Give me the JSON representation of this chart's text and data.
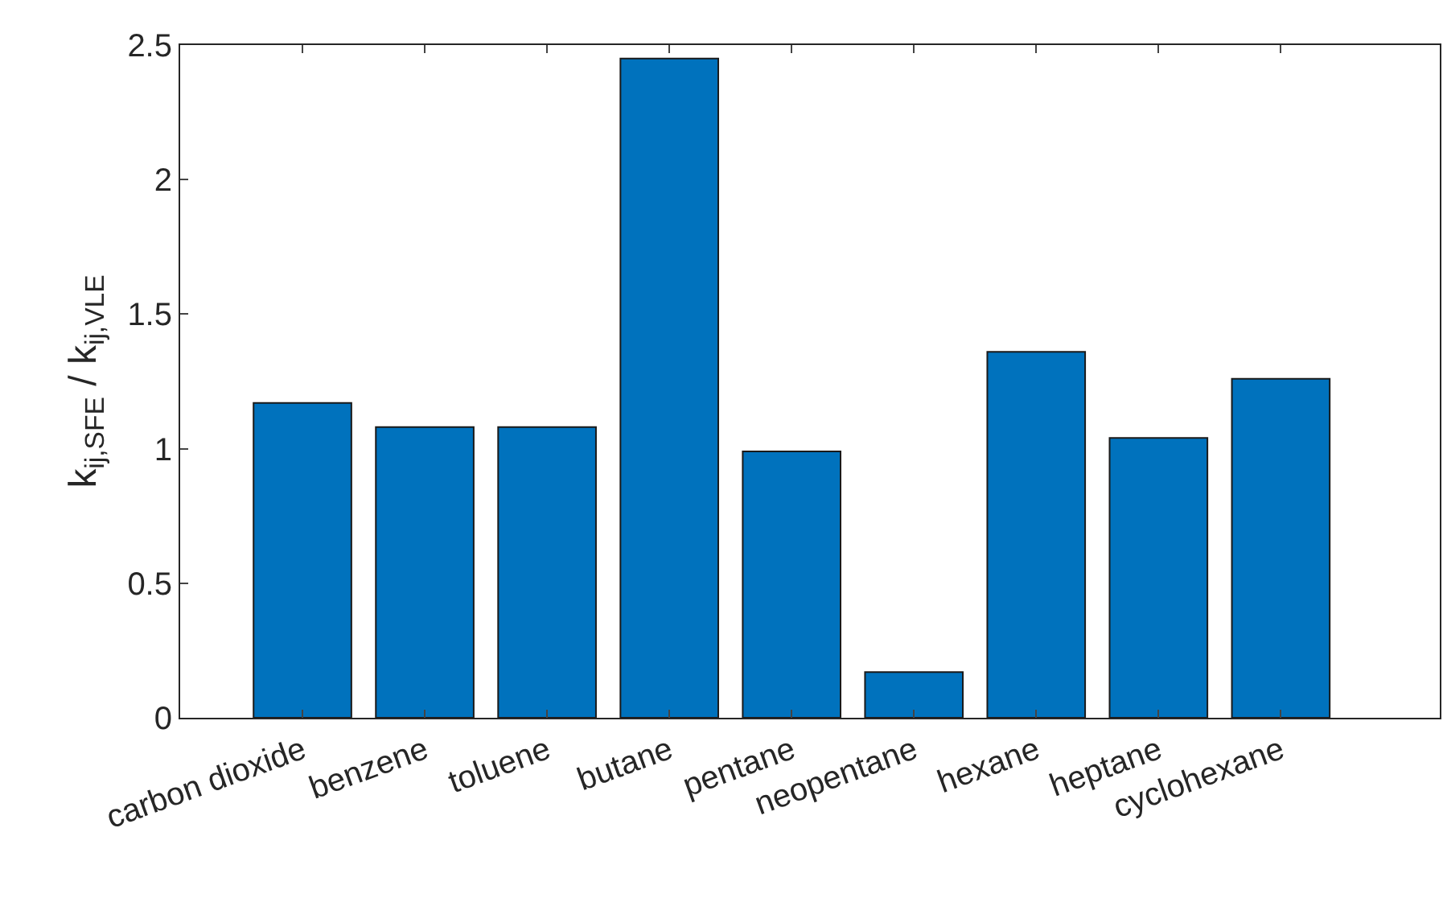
{
  "chart_data": {
    "type": "bar",
    "ylabel": "k$_{ij,SFE}$ / k$_{ij,VLE}$",
    "categories": [
      "carbon dioxide",
      "benzene",
      "toluene",
      "butane",
      "pentane",
      "neopentane",
      "hexane",
      "heptane",
      "cyclohexane"
    ],
    "values": [
      1.17,
      1.08,
      1.08,
      2.45,
      0.99,
      0.17,
      1.36,
      1.04,
      1.26
    ],
    "color": "#0072bd",
    "ylim": [
      0,
      2.5
    ],
    "yticks": [
      0,
      0.5,
      1,
      1.5,
      2,
      2.5
    ]
  }
}
